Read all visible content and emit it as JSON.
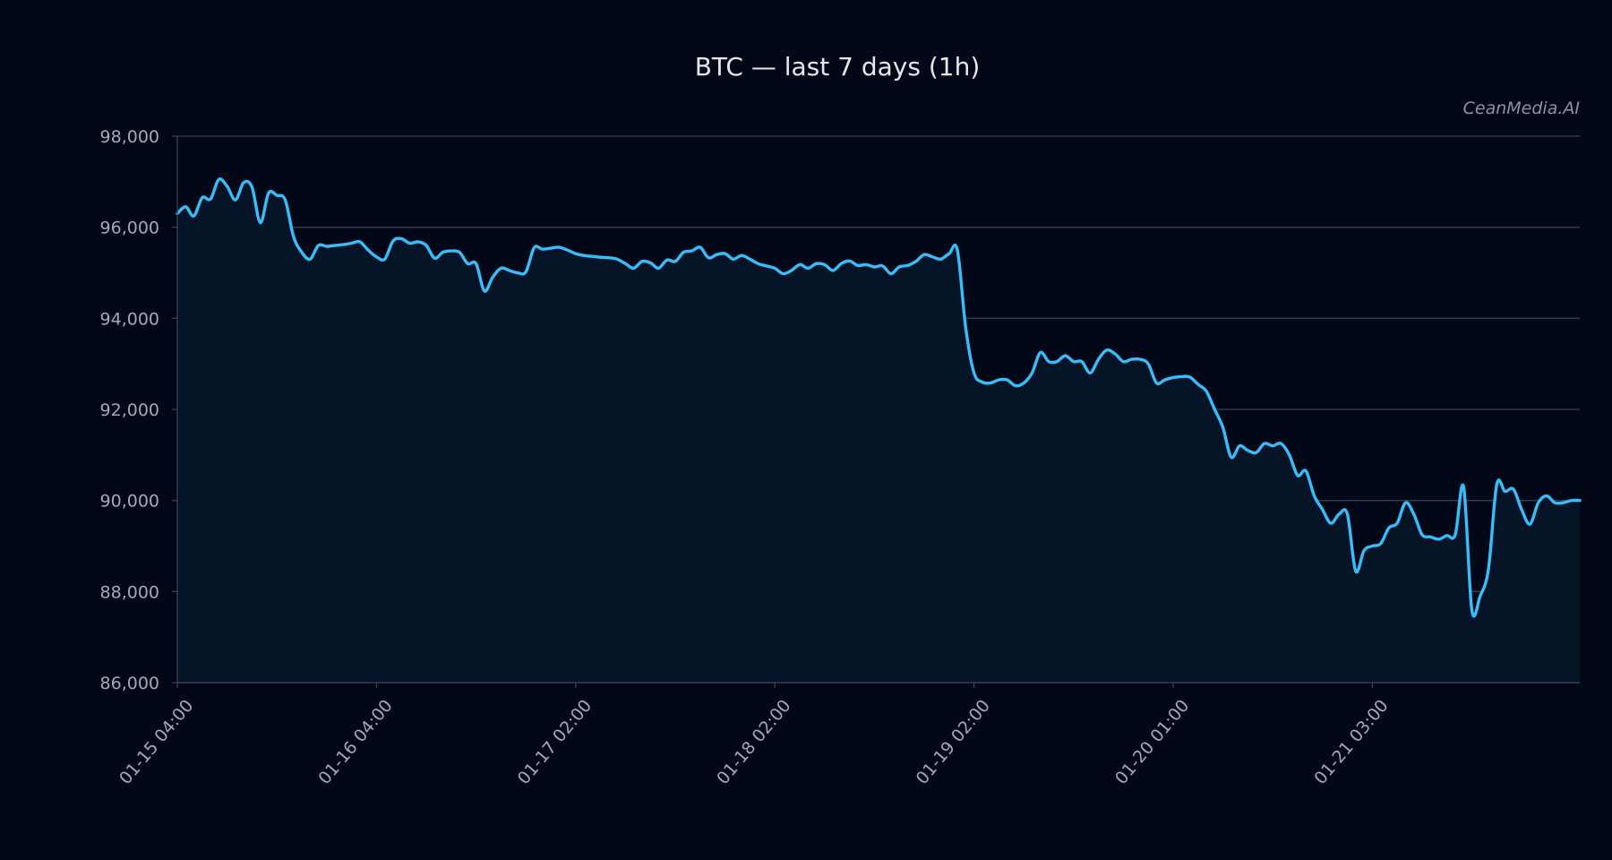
{
  "chart_data": {
    "type": "area",
    "title": "BTC — last 7 days (1h)",
    "watermark": "CeanMedia.AI",
    "xlabel": "",
    "ylabel": "",
    "ylim": [
      86000,
      98000
    ],
    "y_ticks": [
      86000,
      88000,
      90000,
      92000,
      94000,
      96000,
      98000
    ],
    "y_tick_labels": [
      "86,000",
      "88,000",
      "90,000",
      "92,000",
      "94,000",
      "96,000",
      "98,000"
    ],
    "x_tick_labels": [
      "01-15 04:00",
      "01-16 04:00",
      "01-17 02:00",
      "01-18 02:00",
      "01-19 02:00",
      "01-20 01:00",
      "01-21 03:00"
    ],
    "x_tick_index": [
      0,
      24,
      48,
      72,
      96,
      120,
      144
    ],
    "grid": true,
    "colors": {
      "background": "#020817",
      "line": "#38bdf8",
      "fill": "#061427",
      "grid": "#334155",
      "text": "#a3aab6"
    },
    "series": [
      {
        "values": [
          96300,
          96450,
          96250,
          96650,
          96620,
          97050,
          96900,
          96600,
          96980,
          96880,
          96100,
          96750,
          96700,
          96600,
          95800,
          95450,
          95300,
          95600,
          95580,
          95600,
          95620,
          95650,
          95680,
          95500,
          95350,
          95300,
          95700,
          95750,
          95650,
          95680,
          95600,
          95320,
          95450,
          95480,
          95450,
          95200,
          95200,
          94600,
          94900,
          95100,
          95050,
          95000,
          95020,
          95550,
          95520,
          95540,
          95560,
          95500,
          95420,
          95380,
          95360,
          95340,
          95330,
          95300,
          95200,
          95100,
          95250,
          95220,
          95100,
          95280,
          95250,
          95450,
          95480,
          95560,
          95330,
          95400,
          95420,
          95300,
          95380,
          95300,
          95200,
          95150,
          95100,
          94980,
          95050,
          95180,
          95100,
          95200,
          95180,
          95050,
          95200,
          95260,
          95160,
          95180,
          95130,
          95150,
          94980,
          95130,
          95160,
          95250,
          95400,
          95350,
          95300,
          95420,
          95500,
          93800,
          92800,
          92600,
          92580,
          92650,
          92650,
          92520,
          92580,
          92800,
          93250,
          93050,
          93050,
          93180,
          93050,
          93050,
          92800,
          93100,
          93300,
          93220,
          93050,
          93100,
          93100,
          93000,
          92580,
          92650,
          92700,
          92720,
          92710,
          92550,
          92400,
          92000,
          91600,
          90950,
          91200,
          91100,
          91050,
          91250,
          91200,
          91250,
          91000,
          90550,
          90650,
          90100,
          89800,
          89500,
          89700,
          89700,
          88450,
          88900,
          89000,
          89050,
          89400,
          89500,
          89950,
          89700,
          89250,
          89200,
          89150,
          89230,
          89250,
          90300,
          87600,
          87900,
          88500,
          90350,
          90200,
          90250,
          89800,
          89480,
          89950,
          90100,
          89950,
          89950,
          90000,
          90000
        ]
      }
    ]
  }
}
